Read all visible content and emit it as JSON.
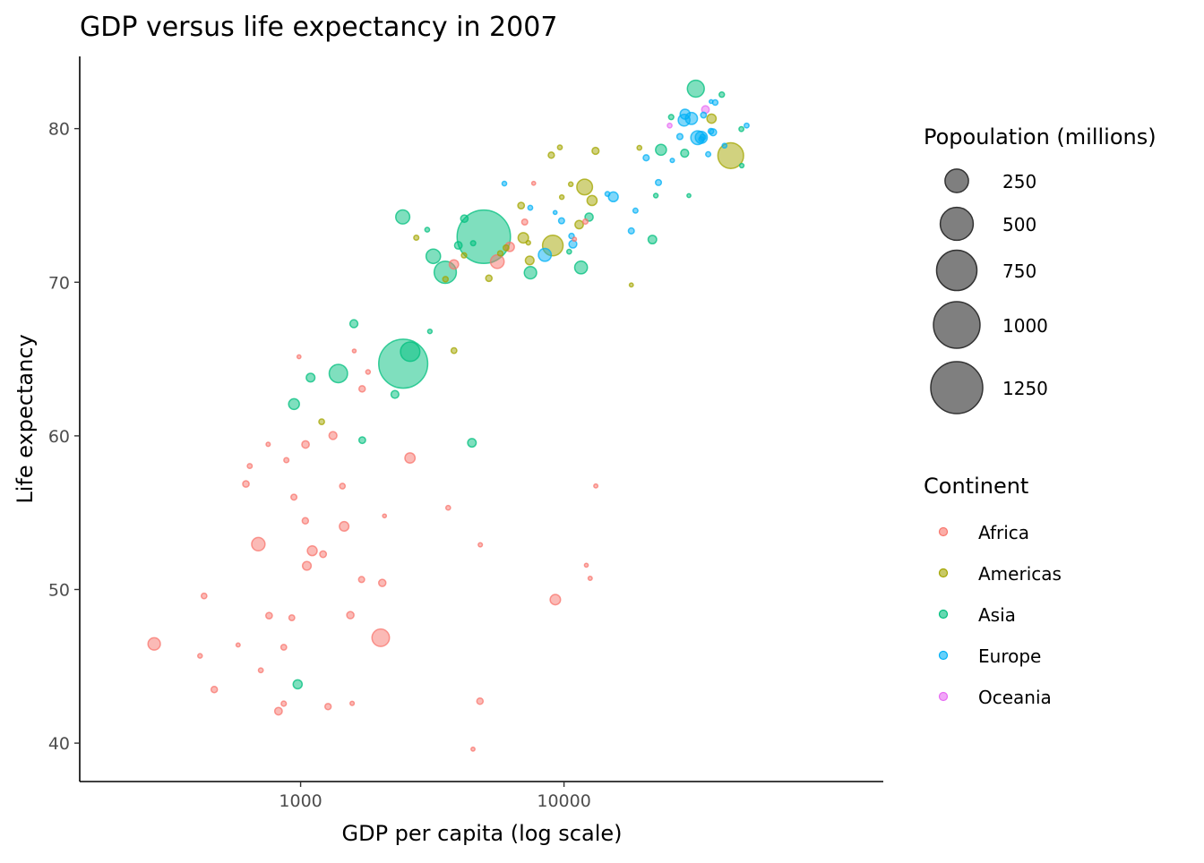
{
  "chart_data": {
    "type": "scatter",
    "title": "GDP versus life expectancy in 2007",
    "xlabel": "GDP per capita (log scale)",
    "ylabel": "Life expectancy",
    "x_scale": "log10",
    "xlim": [
      145,
      163000
    ],
    "ylim": [
      37.5,
      84.7
    ],
    "x_ticks": [
      1000,
      10000
    ],
    "x_tick_labels": [
      "1000",
      "10000"
    ],
    "y_ticks": [
      40,
      50,
      60,
      70,
      80
    ],
    "y_tick_labels": [
      "40",
      "50",
      "60",
      "70",
      "80"
    ],
    "grid": false,
    "point_alpha": 0.5,
    "size_legend": {
      "title": "Popoulation (millions)",
      "values": [
        250,
        500,
        750,
        1000,
        1250
      ],
      "labels": [
        "250",
        "500",
        "750",
        "1000",
        "1250"
      ]
    },
    "color_legend": {
      "title": "Continent",
      "placement": "right",
      "entries": [
        {
          "label": "Africa",
          "color": "#F8766D"
        },
        {
          "label": "Americas",
          "color": "#A3A500"
        },
        {
          "label": "Asia",
          "color": "#00BF7D"
        },
        {
          "label": "Europe",
          "color": "#00B0F6"
        },
        {
          "label": "Oceania",
          "color": "#E76BF3"
        }
      ]
    },
    "point_fields": [
      "gdp_per_capita",
      "life_expectancy",
      "population_millions",
      "continent"
    ],
    "points": [
      [
        974.6,
        43.83,
        31.9,
        "Asia"
      ],
      [
        5937,
        76.42,
        3.6,
        "Europe"
      ],
      [
        6223,
        72.3,
        33.3,
        "Africa"
      ],
      [
        4797,
        42.73,
        12.4,
        "Africa"
      ],
      [
        12779,
        75.32,
        40.3,
        "Americas"
      ],
      [
        34435,
        81.24,
        20.4,
        "Oceania"
      ],
      [
        36126,
        79.83,
        8.2,
        "Europe"
      ],
      [
        29796,
        75.64,
        0.7,
        "Asia"
      ],
      [
        1391,
        64.06,
        150.4,
        "Asia"
      ],
      [
        33693,
        79.44,
        10.4,
        "Europe"
      ],
      [
        1441,
        56.73,
        8.1,
        "Africa"
      ],
      [
        3822,
        65.55,
        9.1,
        "Americas"
      ],
      [
        7446,
        74.85,
        4.6,
        "Europe"
      ],
      [
        12570,
        50.73,
        1.6,
        "Africa"
      ],
      [
        9066,
        72.39,
        190.0,
        "Americas"
      ],
      [
        10681,
        73.01,
        7.3,
        "Europe"
      ],
      [
        1217,
        52.3,
        14.3,
        "Africa"
      ],
      [
        430,
        49.58,
        8.4,
        "Africa"
      ],
      [
        1714,
        59.72,
        14.1,
        "Asia"
      ],
      [
        2042,
        50.43,
        17.7,
        "Africa"
      ],
      [
        36319,
        80.65,
        33.4,
        "Americas"
      ],
      [
        706,
        44.74,
        4.4,
        "Africa"
      ],
      [
        1704,
        50.65,
        10.2,
        "Africa"
      ],
      [
        13172,
        78.55,
        16.3,
        "Americas"
      ],
      [
        4959,
        72.96,
        1318.7,
        "Asia"
      ],
      [
        7007,
        72.89,
        44.2,
        "Americas"
      ],
      [
        986,
        65.15,
        0.7,
        "Africa"
      ],
      [
        278,
        46.46,
        64.6,
        "Africa"
      ],
      [
        3633,
        55.32,
        3.8,
        "Africa"
      ],
      [
        9645,
        78.78,
        4.1,
        "Americas"
      ],
      [
        1545,
        48.33,
        18.0,
        "Africa"
      ],
      [
        14619,
        75.75,
        4.5,
        "Europe"
      ],
      [
        8948,
        78.27,
        11.4,
        "Americas"
      ],
      [
        22833,
        76.49,
        10.2,
        "Europe"
      ],
      [
        35278,
        78.33,
        5.5,
        "Europe"
      ],
      [
        2082,
        54.79,
        0.5,
        "Africa"
      ],
      [
        6025,
        72.24,
        9.3,
        "Americas"
      ],
      [
        6873,
        74.99,
        13.8,
        "Americas"
      ],
      [
        5581,
        71.34,
        80.3,
        "Africa"
      ],
      [
        5728,
        71.88,
        6.9,
        "Americas"
      ],
      [
        12154,
        51.58,
        0.55,
        "Africa"
      ],
      [
        641,
        58.04,
        4.9,
        "Africa"
      ],
      [
        691,
        52.95,
        76.5,
        "Africa"
      ],
      [
        33207,
        79.31,
        5.2,
        "Europe"
      ],
      [
        30470,
        80.66,
        61.1,
        "Europe"
      ],
      [
        13206,
        56.74,
        1.45,
        "Africa"
      ],
      [
        753,
        59.45,
        1.7,
        "Africa"
      ],
      [
        32170,
        79.41,
        82.4,
        "Europe"
      ],
      [
        1327,
        60.02,
        22.9,
        "Africa"
      ],
      [
        27538,
        79.48,
        10.7,
        "Europe"
      ],
      [
        5186,
        70.26,
        12.6,
        "Americas"
      ],
      [
        943,
        56.01,
        9.9,
        "Africa"
      ],
      [
        579,
        46.39,
        1.5,
        "Africa"
      ],
      [
        1202,
        60.92,
        8.5,
        "Americas"
      ],
      [
        3548,
        70.2,
        7.5,
        "Americas"
      ],
      [
        39725,
        82.21,
        7.0,
        "Asia"
      ],
      [
        18009,
        73.34,
        10.0,
        "Europe"
      ],
      [
        36181,
        81.76,
        0.3,
        "Europe"
      ],
      [
        2452,
        64.7,
        1110.4,
        "Asia"
      ],
      [
        3541,
        70.65,
        223.5,
        "Asia"
      ],
      [
        11606,
        70.96,
        69.5,
        "Asia"
      ],
      [
        4471,
        59.55,
        27.5,
        "Asia"
      ],
      [
        40676,
        78.89,
        4.1,
        "Europe"
      ],
      [
        25523,
        80.75,
        6.4,
        "Asia"
      ],
      [
        28570,
        80.55,
        58.1,
        "Europe"
      ],
      [
        7321,
        72.57,
        2.8,
        "Americas"
      ],
      [
        31656,
        82.6,
        127.5,
        "Asia"
      ],
      [
        4519,
        72.54,
        6.05,
        "Asia"
      ],
      [
        1463,
        54.11,
        35.6,
        "Africa"
      ],
      [
        1593,
        67.3,
        23.3,
        "Asia"
      ],
      [
        23348,
        78.62,
        49.0,
        "Asia"
      ],
      [
        47307,
        77.59,
        2.5,
        "Asia"
      ],
      [
        10461,
        71.99,
        3.9,
        "Asia"
      ],
      [
        1569,
        42.59,
        2.0,
        "Africa"
      ],
      [
        415,
        45.68,
        3.2,
        "Africa"
      ],
      [
        12057,
        73.95,
        6.0,
        "Africa"
      ],
      [
        1044,
        59.44,
        19.2,
        "Africa"
      ],
      [
        759,
        48.3,
        13.3,
        "Africa"
      ],
      [
        12452,
        74.24,
        24.8,
        "Asia"
      ],
      [
        1042,
        54.47,
        12.0,
        "Africa"
      ],
      [
        1803,
        64.16,
        3.3,
        "Africa"
      ],
      [
        10957,
        72.8,
        1.25,
        "Africa"
      ],
      [
        11978,
        76.2,
        108.7,
        "Americas"
      ],
      [
        3096,
        66.8,
        2.9,
        "Asia"
      ],
      [
        9254,
        74.54,
        0.68,
        "Europe"
      ],
      [
        3820,
        71.16,
        33.8,
        "Africa"
      ],
      [
        824,
        42.08,
        20.0,
        "Africa"
      ],
      [
        944,
        62.07,
        47.8,
        "Asia"
      ],
      [
        4811,
        52.91,
        2.06,
        "Africa"
      ],
      [
        1091,
        63.79,
        28.9,
        "Asia"
      ],
      [
        36798,
        79.76,
        16.6,
        "Europe"
      ],
      [
        25185,
        80.2,
        4.1,
        "Oceania"
      ],
      [
        2749,
        72.9,
        5.7,
        "Americas"
      ],
      [
        620,
        56.87,
        12.9,
        "Africa"
      ],
      [
        2014,
        46.86,
        135.0,
        "Africa"
      ],
      [
        49357,
        80.2,
        4.6,
        "Europe"
      ],
      [
        22316,
        75.64,
        3.2,
        "Asia"
      ],
      [
        2606,
        65.48,
        169.3,
        "Asia"
      ],
      [
        9809,
        75.54,
        3.2,
        "Americas"
      ],
      [
        4173,
        71.75,
        6.7,
        "Americas"
      ],
      [
        7409,
        71.42,
        28.7,
        "Americas"
      ],
      [
        3190,
        71.69,
        91.1,
        "Asia"
      ],
      [
        15390,
        75.56,
        38.5,
        "Europe"
      ],
      [
        20510,
        78.1,
        10.6,
        "Europe"
      ],
      [
        19329,
        78.75,
        3.9,
        "Americas"
      ],
      [
        7670,
        76.44,
        0.8,
        "Africa"
      ],
      [
        10808,
        72.48,
        22.3,
        "Europe"
      ],
      [
        863,
        46.24,
        8.9,
        "Africa"
      ],
      [
        1598,
        65.53,
        0.2,
        "Africa"
      ],
      [
        21655,
        72.78,
        27.6,
        "Asia"
      ],
      [
        1712,
        63.06,
        12.3,
        "Africa"
      ],
      [
        9787,
        74.0,
        10.2,
        "Europe"
      ],
      [
        863,
        42.57,
        6.1,
        "Africa"
      ],
      [
        47143,
        79.97,
        4.6,
        "Asia"
      ],
      [
        18678,
        74.66,
        5.4,
        "Europe"
      ],
      [
        25768,
        77.93,
        2.0,
        "Europe"
      ],
      [
        926,
        48.16,
        9.1,
        "Africa"
      ],
      [
        9270,
        49.34,
        44.0,
        "Africa"
      ],
      [
        28821,
        80.94,
        40.4,
        "Europe"
      ],
      [
        3970,
        72.4,
        20.4,
        "Asia"
      ],
      [
        2602,
        58.56,
        42.3,
        "Africa"
      ],
      [
        4513,
        39.61,
        1.1,
        "Africa"
      ],
      [
        33860,
        80.88,
        9.0,
        "Europe"
      ],
      [
        37506,
        81.7,
        7.55,
        "Europe"
      ],
      [
        4185,
        74.14,
        19.3,
        "Asia"
      ],
      [
        28718,
        78.4,
        23.2,
        "Asia"
      ],
      [
        1107,
        52.52,
        38.1,
        "Africa"
      ],
      [
        7458,
        70.62,
        65.1,
        "Asia"
      ],
      [
        883,
        58.42,
        5.7,
        "Africa"
      ],
      [
        18009,
        69.82,
        1.06,
        "Americas"
      ],
      [
        7093,
        73.92,
        10.3,
        "Africa"
      ],
      [
        8458,
        71.78,
        71.2,
        "Europe"
      ],
      [
        1056,
        51.54,
        29.2,
        "Africa"
      ],
      [
        33203,
        79.43,
        60.8,
        "Europe"
      ],
      [
        42952,
        78.24,
        301.1,
        "Americas"
      ],
      [
        10611,
        76.38,
        3.4,
        "Americas"
      ],
      [
        11416,
        73.75,
        26.1,
        "Americas"
      ],
      [
        2442,
        74.25,
        85.3,
        "Asia"
      ],
      [
        3025,
        73.42,
        4.0,
        "Asia"
      ],
      [
        2281,
        62.7,
        22.2,
        "Asia"
      ],
      [
        1271,
        42.38,
        11.7,
        "Africa"
      ],
      [
        470,
        43.49,
        12.3,
        "Africa"
      ]
    ]
  }
}
